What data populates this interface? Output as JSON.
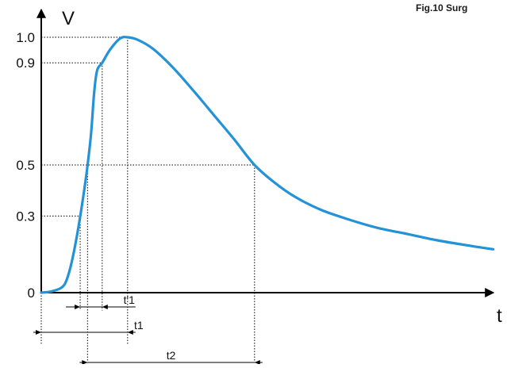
{
  "figure": {
    "title": "Fig.10 Surg"
  },
  "chart_data": {
    "type": "line",
    "title": "Fig.10 Surg",
    "xlabel": "t",
    "ylabel": "V",
    "grid": false,
    "ylim": [
      0,
      1.0
    ],
    "y_ticks": [
      {
        "value": 0,
        "label": "0"
      },
      {
        "value": 0.3,
        "label": "0.3"
      },
      {
        "value": 0.5,
        "label": "0.5"
      },
      {
        "value": 0.9,
        "label": "0.9"
      },
      {
        "value": 1.0,
        "label": "1.0"
      }
    ],
    "series": [
      {
        "name": "",
        "color": "#2492d6",
        "points": [
          [
            0,
            0
          ],
          [
            0.02,
            0.005
          ],
          [
            0.04,
            0.02
          ],
          [
            0.05,
            0.05
          ],
          [
            0.06,
            0.12
          ],
          [
            0.07,
            0.22
          ],
          [
            0.08,
            0.34
          ],
          [
            0.09,
            0.48
          ],
          [
            0.098,
            0.62
          ],
          [
            0.104,
            0.78
          ],
          [
            0.11,
            0.87
          ],
          [
            0.12,
            0.9
          ],
          [
            0.135,
            0.95
          ],
          [
            0.155,
            0.995
          ],
          [
            0.17,
            1.0
          ],
          [
            0.19,
            0.99
          ],
          [
            0.22,
            0.955
          ],
          [
            0.26,
            0.88
          ],
          [
            0.3,
            0.79
          ],
          [
            0.34,
            0.695
          ],
          [
            0.38,
            0.6
          ],
          [
            0.42,
            0.5
          ],
          [
            0.46,
            0.43
          ],
          [
            0.5,
            0.375
          ],
          [
            0.55,
            0.325
          ],
          [
            0.6,
            0.29
          ],
          [
            0.66,
            0.255
          ],
          [
            0.72,
            0.23
          ],
          [
            0.78,
            0.205
          ],
          [
            0.84,
            0.185
          ],
          [
            0.89,
            0.17
          ]
        ]
      }
    ],
    "peak": {
      "t": 0.17,
      "v": 1.0
    },
    "annotations": [
      {
        "label": "t'1",
        "from": 0.07,
        "to": 0.12
      },
      {
        "label": "t1",
        "from": -0.01,
        "to": 0.17
      },
      {
        "label": "t2",
        "from": 0.09,
        "to": 0.46
      }
    ]
  }
}
